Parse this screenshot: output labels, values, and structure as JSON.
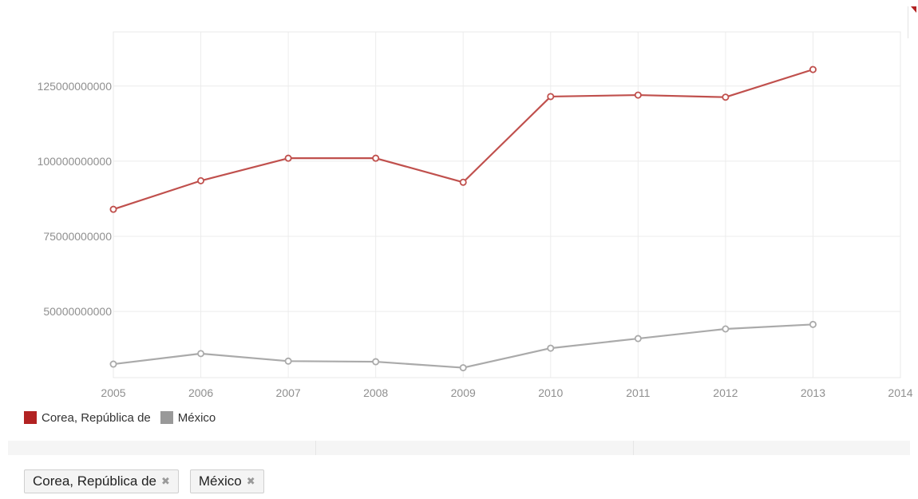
{
  "chart_data": {
    "type": "line",
    "title": "",
    "xlabel": "",
    "ylabel": "",
    "x": [
      2005,
      2006,
      2007,
      2008,
      2009,
      2010,
      2011,
      2012,
      2013
    ],
    "x_ticks": [
      "2005",
      "2006",
      "2007",
      "2008",
      "2009",
      "2010",
      "2011",
      "2012",
      "2013",
      "2014"
    ],
    "xlim": [
      2005,
      2014
    ],
    "y_ticks": [
      50000000000,
      75000000000,
      100000000000,
      125000000000
    ],
    "y_tick_labels": [
      "50000000000",
      "75000000000",
      "100000000000",
      "125000000000"
    ],
    "ylim": [
      28000000000,
      143000000000
    ],
    "grid": true,
    "legend_position": "bottom-left",
    "series": [
      {
        "name": "Corea, República de",
        "color": "#c0504d",
        "swatch_color": "#b22222",
        "values": [
          84000000000,
          93500000000,
          101000000000,
          101000000000,
          93000000000,
          121500000000,
          122000000000,
          121300000000,
          130500000000
        ]
      },
      {
        "name": "México",
        "color": "#aaaaaa",
        "swatch_color": "#999999",
        "values": [
          32500000000,
          36000000000,
          33500000000,
          33300000000,
          31300000000,
          37800000000,
          41000000000,
          44200000000,
          45700000000
        ]
      }
    ]
  },
  "filters": [
    {
      "label": "Corea, República de",
      "remove_icon": "close-icon"
    },
    {
      "label": "México",
      "remove_icon": "close-icon"
    }
  ]
}
